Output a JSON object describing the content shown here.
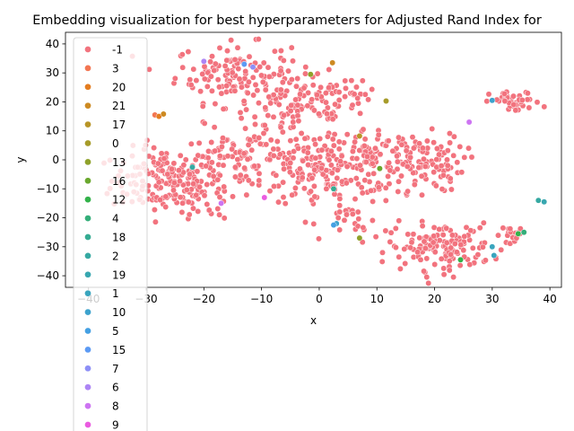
{
  "chart_data": {
    "type": "scatter",
    "title": "Embedding visualization for best hyperparameters for Adjusted Rand Index for",
    "xlabel": "x",
    "ylabel": "y",
    "xlim": [
      -44,
      42
    ],
    "ylim": [
      -44,
      44
    ],
    "xticks": [
      -40,
      -30,
      -20,
      -10,
      0,
      10,
      20,
      30,
      40
    ],
    "yticks": [
      -40,
      -30,
      -20,
      -10,
      0,
      10,
      20,
      30,
      40
    ],
    "grid": false,
    "legend_position": "upper-left",
    "legend": [
      {
        "label": "-1",
        "color": "#f2737e"
      },
      {
        "label": "3",
        "color": "#f37652"
      },
      {
        "label": "20",
        "color": "#e47d20"
      },
      {
        "label": "21",
        "color": "#cd8a22"
      },
      {
        "label": "17",
        "color": "#b89527"
      },
      {
        "label": "0",
        "color": "#a69b29"
      },
      {
        "label": "13",
        "color": "#8fa12a"
      },
      {
        "label": "16",
        "color": "#6aa82e"
      },
      {
        "label": "12",
        "color": "#33b24a"
      },
      {
        "label": "4",
        "color": "#34ae79"
      },
      {
        "label": "18",
        "color": "#35ab92"
      },
      {
        "label": "2",
        "color": "#36a9a2"
      },
      {
        "label": "19",
        "color": "#38a7b0"
      },
      {
        "label": "1",
        "color": "#3aa5be"
      },
      {
        "label": "10",
        "color": "#3ca2cd"
      },
      {
        "label": "5",
        "color": "#44a0e3"
      },
      {
        "label": "15",
        "color": "#5b9af4"
      },
      {
        "label": "7",
        "color": "#8d8ff7"
      },
      {
        "label": "6",
        "color": "#ad85f5"
      },
      {
        "label": "8",
        "color": "#cd74f2"
      },
      {
        "label": "9",
        "color": "#ea5be0"
      }
    ],
    "clusters": [
      {
        "label": "-1",
        "cx": -27,
        "cy": -7,
        "sx": 4.5,
        "sy": 5.5,
        "n": 160
      },
      {
        "label": "-1",
        "cx": -15,
        "cy": 30,
        "sx": 5,
        "sy": 5,
        "n": 120
      },
      {
        "label": "-1",
        "cx": -4,
        "cy": 18,
        "sx": 6,
        "sy": 6,
        "n": 140
      },
      {
        "label": "-1",
        "cx": -13,
        "cy": 0,
        "sx": 6,
        "sy": 5,
        "n": 120
      },
      {
        "label": "-1",
        "cx": 0,
        "cy": -5,
        "sx": 5,
        "sy": 6,
        "n": 120
      },
      {
        "label": "-1",
        "cx": 8,
        "cy": 3,
        "sx": 4,
        "sy": 4,
        "n": 70
      },
      {
        "label": "-1",
        "cx": 17,
        "cy": -1,
        "sx": 4,
        "sy": 5,
        "n": 110
      },
      {
        "label": "-1",
        "cx": 5,
        "cy": 23,
        "sx": 3,
        "sy": 2,
        "n": 20
      },
      {
        "label": "-1",
        "cx": 34,
        "cy": 20,
        "sx": 2.2,
        "sy": 1.8,
        "n": 40
      },
      {
        "label": "-1",
        "cx": 21,
        "cy": -30,
        "sx": 4.5,
        "sy": 4,
        "n": 140
      },
      {
        "label": "-1",
        "cx": 34,
        "cy": -26,
        "sx": 1.8,
        "sy": 1.8,
        "n": 18
      },
      {
        "label": "-1",
        "cx": 7,
        "cy": -22,
        "sx": 2.5,
        "sy": 3,
        "n": 22
      },
      {
        "label": "-1",
        "cx": 10,
        "cy": -10,
        "sx": 3,
        "sy": 2,
        "n": 18
      },
      {
        "label": "-1",
        "cx": -20,
        "cy": -14,
        "sx": 3,
        "sy": 3,
        "n": 30
      }
    ],
    "points": [
      {
        "x": -28.5,
        "y": 15.5,
        "label": "3"
      },
      {
        "x": -27.8,
        "y": 15.0,
        "label": "20"
      },
      {
        "x": -27.0,
        "y": 15.8,
        "label": "21"
      },
      {
        "x": 2.3,
        "y": 33.5,
        "label": "21"
      },
      {
        "x": 11.6,
        "y": 20.3,
        "label": "0"
      },
      {
        "x": 7.0,
        "y": 8.2,
        "label": "17"
      },
      {
        "x": -1.5,
        "y": 29.5,
        "label": "13"
      },
      {
        "x": 10.5,
        "y": -3.0,
        "label": "16"
      },
      {
        "x": 7.0,
        "y": -27.0,
        "label": "13"
      },
      {
        "x": 34.5,
        "y": -25.5,
        "label": "12"
      },
      {
        "x": 24.5,
        "y": -34.5,
        "label": "12"
      },
      {
        "x": 2.5,
        "y": -10.0,
        "label": "18"
      },
      {
        "x": 35.5,
        "y": -25.0,
        "label": "4"
      },
      {
        "x": 38.0,
        "y": -14.0,
        "label": "2"
      },
      {
        "x": 39.0,
        "y": -14.5,
        "label": "19"
      },
      {
        "x": -22.0,
        "y": -2.5,
        "label": "2"
      },
      {
        "x": 30.0,
        "y": -30.0,
        "label": "1"
      },
      {
        "x": 30.3,
        "y": -33.0,
        "label": "1"
      },
      {
        "x": 30.0,
        "y": 20.5,
        "label": "10"
      },
      {
        "x": 3.0,
        "y": -22.0,
        "label": "10"
      },
      {
        "x": 2.5,
        "y": -22.5,
        "label": "5"
      },
      {
        "x": -13.0,
        "y": 33.0,
        "label": "15"
      },
      {
        "x": -11.5,
        "y": 32.0,
        "label": "7"
      },
      {
        "x": -20.0,
        "y": 34.0,
        "label": "6"
      },
      {
        "x": 26.0,
        "y": 13.0,
        "label": "8"
      },
      {
        "x": -17.0,
        "y": -15.0,
        "label": "8"
      },
      {
        "x": -9.5,
        "y": -13.0,
        "label": "9"
      }
    ]
  }
}
